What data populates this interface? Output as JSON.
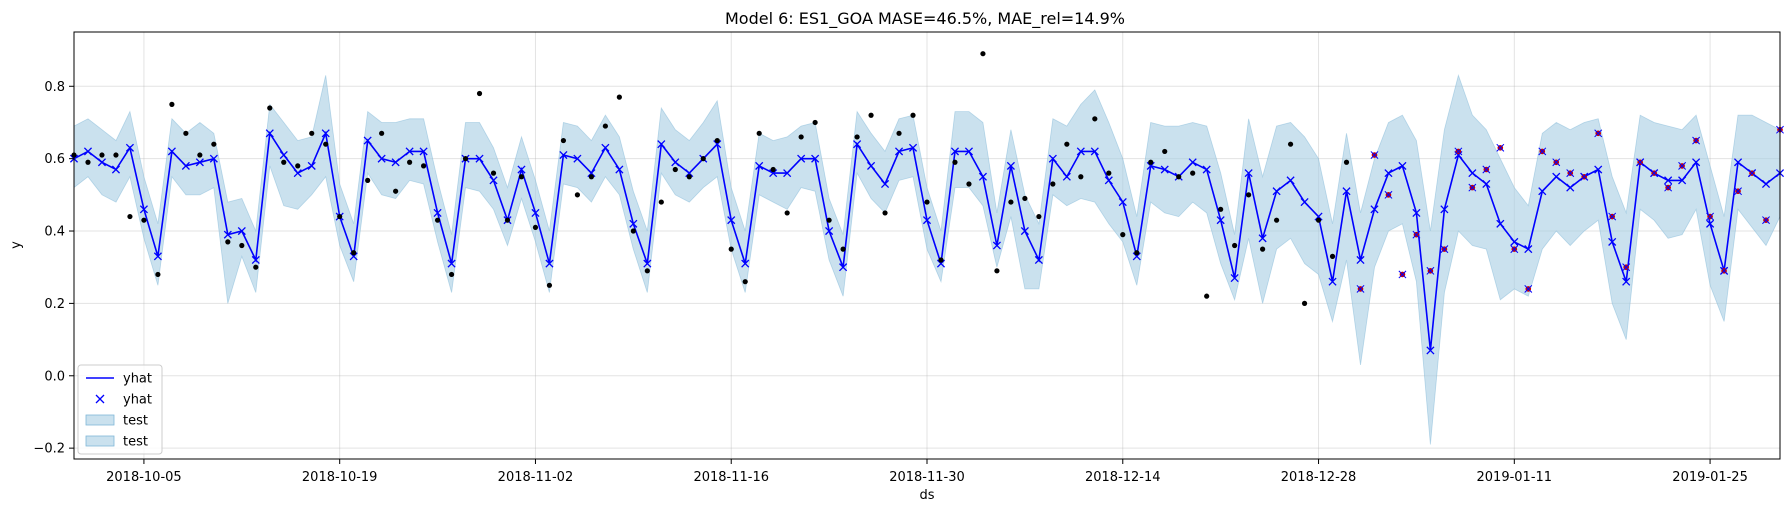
{
  "chart_data": {
    "type": "line",
    "title": "Model 6: ES1_GOA MASE=46.5%, MAE_rel=14.9%",
    "xlabel": "ds",
    "ylabel": "y",
    "xlim": [
      "2018-09-30",
      "2019-01-30"
    ],
    "ylim": [
      -0.23,
      0.95
    ],
    "grid": true,
    "legend_position": "lower-left",
    "x_ticks": [
      "2018-10-05",
      "2018-10-19",
      "2018-11-02",
      "2018-11-16",
      "2018-11-30",
      "2018-12-14",
      "2018-12-28",
      "2019-01-11",
      "2019-01-25"
    ],
    "y_ticks": [
      "−0.2",
      "0.0",
      "0.2",
      "0.4",
      "0.6",
      "0.8"
    ],
    "y_tick_values": [
      -0.2,
      0.0,
      0.2,
      0.4,
      0.6,
      0.8
    ],
    "legend": [
      {
        "label": "yhat",
        "kind": "line"
      },
      {
        "label": "yhat",
        "kind": "marker"
      },
      {
        "label": "test",
        "kind": "band"
      },
      {
        "label": "test",
        "kind": "band"
      }
    ],
    "colors": {
      "yhat": "#0000ff",
      "band": "#a6cde2",
      "train": "#000000",
      "test": "#cc0000"
    },
    "start_date": "2018-09-30",
    "yhat": [
      0.6,
      0.62,
      0.59,
      0.57,
      0.63,
      0.46,
      0.33,
      0.62,
      0.58,
      0.59,
      0.6,
      0.39,
      0.4,
      0.32,
      0.67,
      0.61,
      0.56,
      0.58,
      0.67,
      0.44,
      0.33,
      0.65,
      0.6,
      0.59,
      0.62,
      0.62,
      0.45,
      0.31,
      0.6,
      0.6,
      0.54,
      0.43,
      0.57,
      0.45,
      0.31,
      0.61,
      0.6,
      0.56,
      0.63,
      0.57,
      0.42,
      0.31,
      0.64,
      0.59,
      0.56,
      0.6,
      0.64,
      0.43,
      0.31,
      0.58,
      0.56,
      0.56,
      0.6,
      0.6,
      0.4,
      0.3,
      0.64,
      0.58,
      0.53,
      0.62,
      0.63,
      0.43,
      0.31,
      0.62,
      0.62,
      0.55,
      0.36,
      0.58,
      0.4,
      0.32,
      0.6,
      0.55,
      0.62,
      0.62,
      0.54,
      0.48,
      0.33,
      0.58,
      0.57,
      0.55,
      0.59,
      0.57,
      0.43,
      0.27,
      0.56,
      0.38,
      0.51,
      0.54,
      0.48,
      0.44,
      0.26,
      0.51,
      0.32,
      0.46,
      0.56,
      0.58,
      0.45,
      0.07,
      0.46,
      0.61,
      0.56,
      0.53,
      0.42,
      0.37,
      0.35,
      0.51,
      0.55,
      0.52,
      0.55,
      0.57,
      0.37,
      0.26,
      0.59,
      0.56,
      0.54,
      0.54,
      0.59,
      0.42,
      0.29,
      0.59,
      0.56,
      0.53,
      0.56
    ],
    "band_upper": [
      0.69,
      0.71,
      0.68,
      0.65,
      0.73,
      0.55,
      0.42,
      0.71,
      0.67,
      0.7,
      0.67,
      0.48,
      0.49,
      0.4,
      0.75,
      0.7,
      0.65,
      0.66,
      0.83,
      0.53,
      0.42,
      0.73,
      0.7,
      0.7,
      0.71,
      0.71,
      0.54,
      0.39,
      0.7,
      0.7,
      0.63,
      0.52,
      0.66,
      0.54,
      0.4,
      0.7,
      0.69,
      0.65,
      0.72,
      0.66,
      0.51,
      0.4,
      0.74,
      0.68,
      0.65,
      0.7,
      0.76,
      0.52,
      0.4,
      0.67,
      0.65,
      0.66,
      0.69,
      0.7,
      0.49,
      0.39,
      0.73,
      0.67,
      0.62,
      0.71,
      0.72,
      0.52,
      0.4,
      0.73,
      0.73,
      0.7,
      0.45,
      0.68,
      0.5,
      0.42,
      0.71,
      0.69,
      0.75,
      0.79,
      0.7,
      0.6,
      0.44,
      0.7,
      0.69,
      0.69,
      0.7,
      0.69,
      0.56,
      0.39,
      0.71,
      0.55,
      0.69,
      0.7,
      0.66,
      0.6,
      0.42,
      0.67,
      0.45,
      0.6,
      0.7,
      0.72,
      0.65,
      0.4,
      0.68,
      0.83,
      0.72,
      0.68,
      0.6,
      0.52,
      0.47,
      0.67,
      0.7,
      0.68,
      0.7,
      0.71,
      0.55,
      0.45,
      0.72,
      0.7,
      0.69,
      0.68,
      0.72,
      0.58,
      0.44,
      0.72,
      0.72,
      0.7,
      0.68
    ],
    "band_lower": [
      0.52,
      0.55,
      0.5,
      0.48,
      0.55,
      0.38,
      0.25,
      0.55,
      0.5,
      0.5,
      0.52,
      0.2,
      0.33,
      0.23,
      0.58,
      0.47,
      0.46,
      0.5,
      0.55,
      0.36,
      0.26,
      0.56,
      0.5,
      0.49,
      0.54,
      0.53,
      0.37,
      0.23,
      0.52,
      0.51,
      0.46,
      0.36,
      0.49,
      0.37,
      0.23,
      0.53,
      0.52,
      0.48,
      0.55,
      0.5,
      0.35,
      0.23,
      0.56,
      0.5,
      0.48,
      0.52,
      0.55,
      0.35,
      0.23,
      0.5,
      0.48,
      0.46,
      0.52,
      0.51,
      0.32,
      0.22,
      0.56,
      0.49,
      0.45,
      0.54,
      0.55,
      0.35,
      0.26,
      0.52,
      0.52,
      0.47,
      0.3,
      0.44,
      0.24,
      0.24,
      0.5,
      0.47,
      0.49,
      0.48,
      0.42,
      0.37,
      0.25,
      0.48,
      0.45,
      0.44,
      0.48,
      0.45,
      0.31,
      0.21,
      0.38,
      0.2,
      0.35,
      0.38,
      0.31,
      0.28,
      0.15,
      0.32,
      0.03,
      0.3,
      0.4,
      0.42,
      0.26,
      -0.19,
      0.23,
      0.4,
      0.36,
      0.35,
      0.21,
      0.24,
      0.22,
      0.35,
      0.4,
      0.36,
      0.4,
      0.43,
      0.2,
      0.1,
      0.46,
      0.43,
      0.38,
      0.39,
      0.46,
      0.25,
      0.15,
      0.46,
      0.41,
      0.36,
      0.44
    ],
    "train": [
      [
        0,
        0.61
      ],
      [
        1,
        0.59
      ],
      [
        2,
        0.61
      ],
      [
        3,
        0.61
      ],
      [
        4,
        0.44
      ],
      [
        5,
        0.43
      ],
      [
        6,
        0.28
      ],
      [
        7,
        0.75
      ],
      [
        8,
        0.67
      ],
      [
        9,
        0.61
      ],
      [
        10,
        0.64
      ],
      [
        11,
        0.37
      ],
      [
        12,
        0.36
      ],
      [
        13,
        0.3
      ],
      [
        14,
        0.74
      ],
      [
        15,
        0.59
      ],
      [
        16,
        0.58
      ],
      [
        17,
        0.67
      ],
      [
        18,
        0.64
      ],
      [
        19,
        0.44
      ],
      [
        20,
        0.34
      ],
      [
        21,
        0.54
      ],
      [
        22,
        0.67
      ],
      [
        23,
        0.51
      ],
      [
        24,
        0.59
      ],
      [
        25,
        0.58
      ],
      [
        26,
        0.43
      ],
      [
        27,
        0.28
      ],
      [
        28,
        0.6
      ],
      [
        29,
        0.78
      ],
      [
        30,
        0.56
      ],
      [
        31,
        0.43
      ],
      [
        32,
        0.55
      ],
      [
        33,
        0.41
      ],
      [
        34,
        0.25
      ],
      [
        35,
        0.65
      ],
      [
        36,
        0.5
      ],
      [
        37,
        0.55
      ],
      [
        38,
        0.69
      ],
      [
        39,
        0.77
      ],
      [
        40,
        0.4
      ],
      [
        41,
        0.29
      ],
      [
        42,
        0.48
      ],
      [
        43,
        0.57
      ],
      [
        44,
        0.55
      ],
      [
        45,
        0.6
      ],
      [
        46,
        0.65
      ],
      [
        47,
        0.35
      ],
      [
        48,
        0.26
      ],
      [
        49,
        0.67
      ],
      [
        50,
        0.57
      ],
      [
        51,
        0.45
      ],
      [
        52,
        0.66
      ],
      [
        53,
        0.7
      ],
      [
        54,
        0.43
      ],
      [
        55,
        0.35
      ],
      [
        56,
        0.66
      ],
      [
        57,
        0.72
      ],
      [
        58,
        0.45
      ],
      [
        59,
        0.67
      ],
      [
        60,
        0.72
      ],
      [
        61,
        0.48
      ],
      [
        62,
        0.32
      ],
      [
        63,
        0.59
      ],
      [
        64,
        0.53
      ],
      [
        65,
        0.89
      ],
      [
        66,
        0.29
      ],
      [
        67,
        0.48
      ],
      [
        68,
        0.49
      ],
      [
        69,
        0.44
      ],
      [
        70,
        0.53
      ],
      [
        71,
        0.64
      ],
      [
        72,
        0.55
      ],
      [
        73,
        0.71
      ],
      [
        74,
        0.56
      ],
      [
        75,
        0.39
      ],
      [
        76,
        0.34
      ],
      [
        77,
        0.59
      ],
      [
        78,
        0.62
      ],
      [
        79,
        0.55
      ],
      [
        80,
        0.56
      ],
      [
        81,
        0.22
      ],
      [
        82,
        0.46
      ],
      [
        83,
        0.36
      ],
      [
        84,
        0.5
      ],
      [
        85,
        0.35
      ],
      [
        86,
        0.43
      ],
      [
        87,
        0.64
      ],
      [
        88,
        0.2
      ],
      [
        89,
        0.43
      ],
      [
        90,
        0.33
      ],
      [
        91,
        0.59
      ]
    ],
    "test": [
      [
        92,
        0.24
      ],
      [
        93,
        0.61
      ],
      [
        94,
        0.5
      ],
      [
        95,
        0.28
      ],
      [
        96,
        0.39
      ],
      [
        97,
        0.29
      ],
      [
        98,
        0.35
      ],
      [
        99,
        0.62
      ],
      [
        100,
        0.52
      ],
      [
        101,
        0.57
      ],
      [
        102,
        0.63
      ],
      [
        103,
        0.35
      ],
      [
        104,
        0.24
      ],
      [
        105,
        0.62
      ],
      [
        106,
        0.59
      ],
      [
        107,
        0.56
      ],
      [
        108,
        0.55
      ],
      [
        109,
        0.67
      ],
      [
        110,
        0.44
      ],
      [
        111,
        0.3
      ],
      [
        112,
        0.59
      ],
      [
        113,
        0.56
      ],
      [
        114,
        0.52
      ],
      [
        115,
        0.58
      ],
      [
        116,
        0.65
      ],
      [
        117,
        0.44
      ],
      [
        118,
        0.29
      ],
      [
        119,
        0.51
      ],
      [
        120,
        0.56
      ],
      [
        121,
        0.43
      ],
      [
        122,
        0.68
      ]
    ]
  }
}
